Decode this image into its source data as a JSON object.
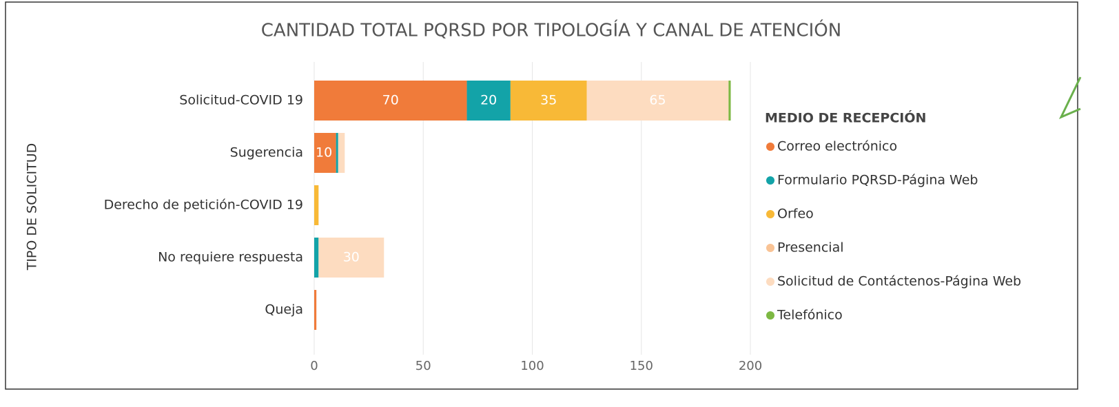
{
  "chart_data": {
    "type": "stacked_barh",
    "title": "CANTIDAD TOTAL PQRSD POR TIPOLOGÍA Y CANAL DE ATENCIÓN",
    "y_label": "TIPO DE SOLICITUD",
    "legend_title": "MEDIO DE RECEPCIÓN",
    "legend": "right",
    "grid": true,
    "categories": [
      "Solicitud-COVID 19",
      "Sugerencia",
      "Derecho de petición-COVID 19",
      "No requiere respuesta",
      "Queja"
    ],
    "series": [
      {
        "name": "Correo electrónico",
        "color": "#f07b3a",
        "values": [
          70,
          10,
          0,
          0,
          1
        ]
      },
      {
        "name": "Formulario PQRSD-Página Web",
        "color": "#13a3a8",
        "values": [
          20,
          1,
          0,
          2,
          0
        ]
      },
      {
        "name": "Orfeo",
        "color": "#f8b937",
        "values": [
          35,
          0,
          2,
          0,
          0
        ]
      },
      {
        "name": "Presencial",
        "color": "#f9c395",
        "values": [
          0,
          0,
          0,
          0,
          0
        ]
      },
      {
        "name": "Solicitud de Contáctenos-Página Web",
        "color": "#fddcc0",
        "values": [
          65,
          3,
          0,
          30,
          0
        ]
      },
      {
        "name": "Telefónico",
        "color": "#7db843",
        "values": [
          1,
          0,
          0,
          0,
          0
        ]
      }
    ],
    "xlim": [
      0,
      200
    ],
    "xticks": [
      0,
      50,
      100,
      150,
      200
    ]
  }
}
